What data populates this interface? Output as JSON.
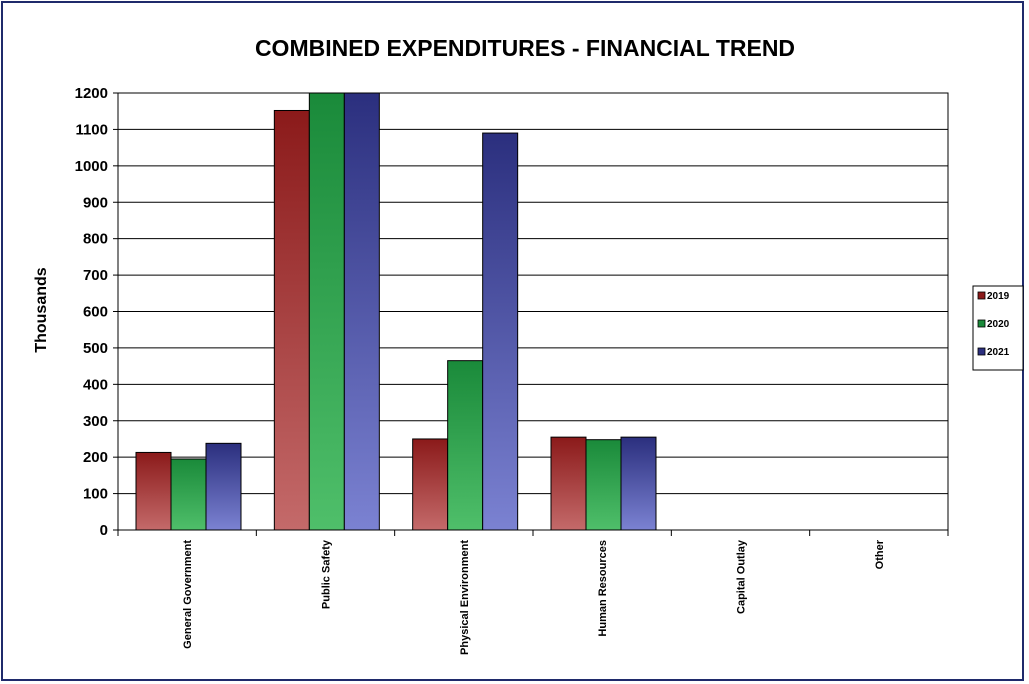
{
  "chart_data": {
    "type": "bar",
    "title": "COMBINED EXPENDITURES - FINANCIAL TREND",
    "ylabel": "Thousands",
    "xlabel": "",
    "ylim": [
      0,
      1200
    ],
    "yticks": [
      0,
      100,
      200,
      300,
      400,
      500,
      600,
      700,
      800,
      900,
      1000,
      1100,
      1200
    ],
    "grid": true,
    "legend_position": "right",
    "categories": [
      "General Government",
      "Public Safety",
      "Physical Environment",
      "Human Resources",
      "Capital Outlay",
      "Other"
    ],
    "series": [
      {
        "name": "2019",
        "color": "#8b1a1a",
        "values": [
          213,
          1152,
          250,
          255,
          0,
          0
        ]
      },
      {
        "name": "2020",
        "color": "#1a8a3a",
        "values": [
          195,
          1200,
          465,
          248,
          0,
          0
        ]
      },
      {
        "name": "2021",
        "color": "#2b2f7e",
        "values": [
          238,
          1200,
          1090,
          255,
          0,
          0
        ]
      }
    ]
  }
}
